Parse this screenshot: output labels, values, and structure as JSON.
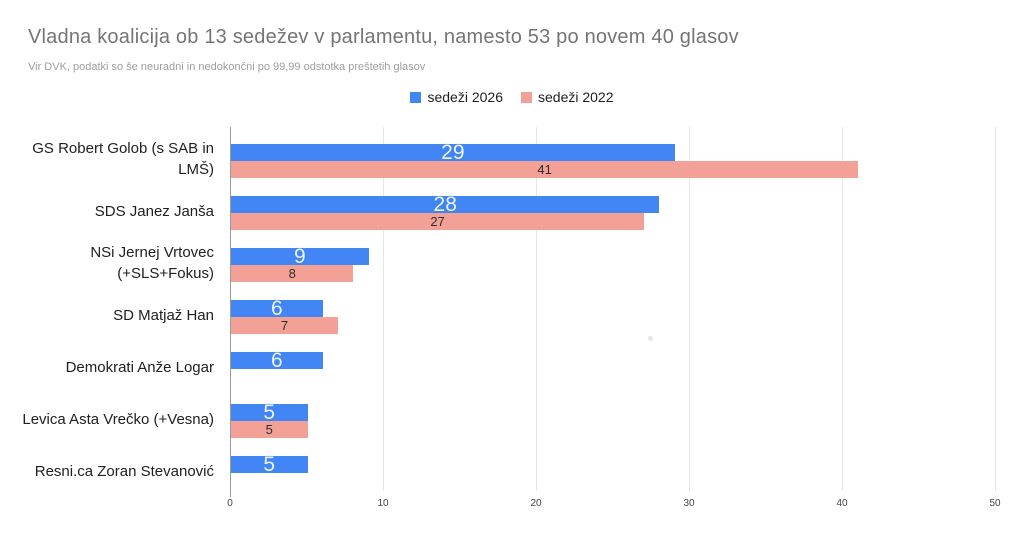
{
  "title": "Vladna koalicija ob 13 sedežev v parlamentu, namesto 53 po novem 40 glasov",
  "subtitle": "Vir DVK, podatki so še neuradni in nedokončni po 99,99 odstotka preštetih glasov",
  "legend": [
    {
      "label": "sedeži 2026",
      "color": "#4285f4"
    },
    {
      "label": "sedeži 2022",
      "color": "#f3a096"
    }
  ],
  "colors": {
    "series_2026": "#4285f4",
    "series_2022": "#f3a096",
    "title_text": "#757575",
    "subtitle_text": "#9e9e9e",
    "category_text": "#212121",
    "annotation_on_blue": "#edf4fe",
    "annotation_on_pink": "#2d2d2d",
    "gridline": "#e6e6e6",
    "axis_line": "#9a9a9a"
  },
  "chart_data": {
    "type": "bar",
    "orientation": "horizontal",
    "title": "Vladna koalicija ob 13 sedežev v parlamentu, namesto 53 po novem 40 glasov",
    "subtitle": "Vir DVK, podatki so še neuradni in nedokončni po 99,99 odstotka preštetih glasov",
    "categories": [
      "GS Robert Golob (s SAB in LMŠ)",
      "SDS Janez Janša",
      "NSi Jernej Vrtovec (+SLS+Fokus)",
      "SD Matjaž Han",
      "Demokrati Anže Logar",
      "Levica Asta Vrečko (+Vesna)",
      "Resni.ca Zoran Stevanović"
    ],
    "series": [
      {
        "name": "sedeži 2026",
        "color": "#4285f4",
        "values": [
          29,
          28,
          9,
          6,
          6,
          5,
          5
        ]
      },
      {
        "name": "sedeži 2022",
        "color": "#f3a096",
        "values": [
          41,
          27,
          8,
          7,
          null,
          5,
          null
        ]
      }
    ],
    "xlabel": "",
    "ylabel": "",
    "xlim": [
      0,
      50
    ],
    "x_ticks": [
      "0",
      "10",
      "20",
      "30",
      "40",
      "50"
    ],
    "grid": true,
    "legend_position": "top"
  }
}
